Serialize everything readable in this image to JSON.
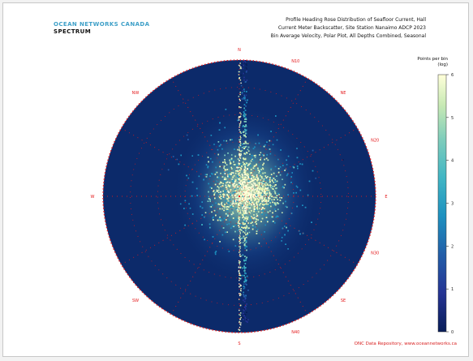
{
  "header": {
    "logo_line1": "OCEAN NETWORKS CANADA",
    "logo_line2": "SPECTRUM",
    "title_lines": [
      "Profile Heading Rose Distribution of Seafloor Current, Hall",
      "Current Meter Backscatter, Site Station Nanaimo ADCP 2023",
      "Bin Average Velocity, Polar Plot, All Depths Combined, Seasonal"
    ]
  },
  "colorbar": {
    "label_line1": "Points per bin",
    "label_line2": "(log)",
    "tick_labels": [
      "6",
      "5",
      "4",
      "3",
      "2",
      "1",
      "0"
    ]
  },
  "footer": {
    "credit": "ONC Data Repository, www.oceannetworks.ca"
  },
  "chart_data": {
    "type": "heatmap",
    "projection": "polar",
    "title": "",
    "radial_ticks": [
      "10",
      "20",
      "30",
      "40",
      "50"
    ],
    "angle_labels": [
      "N",
      "NE",
      "E",
      "SE",
      "S",
      "SW",
      "W",
      "NW",
      "N10",
      "N20",
      "N30",
      "N40"
    ],
    "colorscale": [
      "#081d58",
      "#253494",
      "#225ea8",
      "#1d91c0",
      "#41b6c4",
      "#7fcdbb",
      "#c7e9b4",
      "#edf8b1",
      "#ffffd9"
    ],
    "grid_color": "#e41a1c",
    "grid": true,
    "legend": "right"
  }
}
